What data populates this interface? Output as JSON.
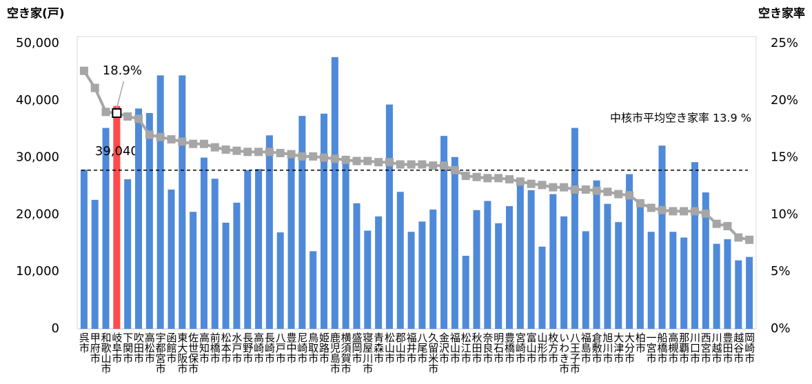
{
  "chart_data": {
    "type": "bar-line",
    "y_title": "空き家(戸)",
    "y2_title": "空き家率",
    "categories": [
      "呉市",
      "甲府市",
      "和歌山市",
      "岐阜市",
      "下関市",
      "吹田市",
      "高松市",
      "宇都宮市",
      "函館市",
      "東大阪市",
      "佐世保市",
      "高知市",
      "前橋市",
      "松本市",
      "水戸市",
      "長野市",
      "高崎市",
      "長崎市",
      "八戸市",
      "豊中市",
      "尼崎市",
      "鳥取市",
      "姫路市",
      "鹿児島市",
      "横須賀市",
      "盛岡市",
      "寝屋川市",
      "青森市",
      "松山市",
      "郡山市",
      "福井市",
      "八尾市",
      "久留米市",
      "金沢市",
      "福山市",
      "松江市",
      "秋田市",
      "奈良市",
      "明石市",
      "豊橋市",
      "宮崎市",
      "富山市",
      "山形市",
      "枚方市",
      "いわき市",
      "八王子市",
      "福島市",
      "倉敷市",
      "旭川市",
      "大津市",
      "大分市",
      "柏市",
      "一宮市",
      "船橋市",
      "高槻市",
      "那覇市",
      "川口市",
      "西宮市",
      "川越市",
      "豊田市",
      "越谷市",
      "岡崎市"
    ],
    "series": [
      {
        "type": "bar",
        "color": "#4f89d9",
        "highlight_color": "#ff4b4b",
        "values": [
          27900,
          22600,
          35200,
          39040,
          26200,
          38600,
          37800,
          44400,
          24400,
          44400,
          20500,
          30000,
          26300,
          18600,
          22100,
          27800,
          28000,
          33900,
          16900,
          30000,
          37300,
          13600,
          37700,
          47600,
          29000,
          22000,
          17200,
          19700,
          39300,
          24000,
          17000,
          18800,
          20900,
          33800,
          30100,
          12800,
          20800,
          22400,
          18500,
          21500,
          25500,
          24300,
          14400,
          23600,
          19700,
          35200,
          17100,
          26000,
          21900,
          18700,
          27100,
          22000,
          17000,
          32100,
          17000,
          16000,
          29200,
          23900,
          14900,
          15700,
          12000,
          12600
        ],
        "value_labels": [
          null,
          null,
          null,
          "39,040",
          null,
          null,
          null,
          null,
          null,
          null,
          null,
          null,
          null,
          null,
          null,
          null,
          null,
          null,
          null,
          null,
          null,
          null,
          null,
          null,
          null,
          null,
          null,
          null,
          null,
          null,
          null,
          null,
          null,
          null,
          null,
          null,
          null,
          null,
          null,
          null,
          null,
          null,
          null,
          null,
          null,
          null,
          null,
          null,
          null,
          null,
          null,
          null,
          null,
          null,
          null,
          null,
          null,
          null,
          null,
          null,
          null,
          null
        ]
      },
      {
        "type": "line",
        "axis": "y2",
        "color": "#a6a6a6",
        "values": [
          22.6,
          21.1,
          19.0,
          18.9,
          18.6,
          18.4,
          17.0,
          16.8,
          16.6,
          16.4,
          16.2,
          16.2,
          15.9,
          15.7,
          15.6,
          15.5,
          15.5,
          15.5,
          15.4,
          15.3,
          15.1,
          15.1,
          15.0,
          14.9,
          14.8,
          14.7,
          14.7,
          14.6,
          14.6,
          14.4,
          14.4,
          14.4,
          14.3,
          14.3,
          13.9,
          13.4,
          13.3,
          13.2,
          13.2,
          13.1,
          12.9,
          12.7,
          12.6,
          12.4,
          12.4,
          12.2,
          12.2,
          12.1,
          12.0,
          11.8,
          11.7,
          11.0,
          10.6,
          10.4,
          10.3,
          10.3,
          10.3,
          10.1,
          9.2,
          9.0,
          8.0,
          7.8
        ],
        "value_labels": [
          null,
          null,
          null,
          "18.9%",
          null,
          null,
          null,
          null,
          null,
          null,
          null,
          null,
          null,
          null,
          null,
          null,
          null,
          null,
          null,
          null,
          null,
          null,
          null,
          null,
          null,
          null,
          null,
          null,
          null,
          null,
          null,
          null,
          null,
          null,
          null,
          null,
          null,
          null,
          null,
          null,
          null,
          null,
          null,
          null,
          null,
          null,
          null,
          null,
          null,
          null,
          null,
          null,
          null,
          null,
          null,
          null,
          null,
          null,
          null,
          null,
          null,
          null
        ]
      }
    ],
    "ylim": [
      0,
      50000
    ],
    "yticks": [
      0,
      {
        "value": 10000,
        "label": "10,000"
      },
      {
        "value": 20000,
        "label": "20,000"
      },
      {
        "value": 30000,
        "label": "30,000"
      },
      {
        "value": 40000,
        "label": "40,000"
      },
      {
        "value": 50000,
        "label": "50,000"
      }
    ],
    "y2lim": [
      0,
      25
    ],
    "y2ticks": [
      {
        "value": 0,
        "label": "0%"
      },
      {
        "value": 5,
        "label": "5%"
      },
      {
        "value": 10,
        "label": "10%"
      },
      {
        "value": 15,
        "label": "15%"
      },
      {
        "value": 20,
        "label": "20%"
      },
      {
        "value": 25,
        "label": "25%"
      }
    ],
    "reference_line": {
      "value": 13.9,
      "axis": "y2",
      "label": "中核市平均空き家率 13.9 %"
    }
  }
}
